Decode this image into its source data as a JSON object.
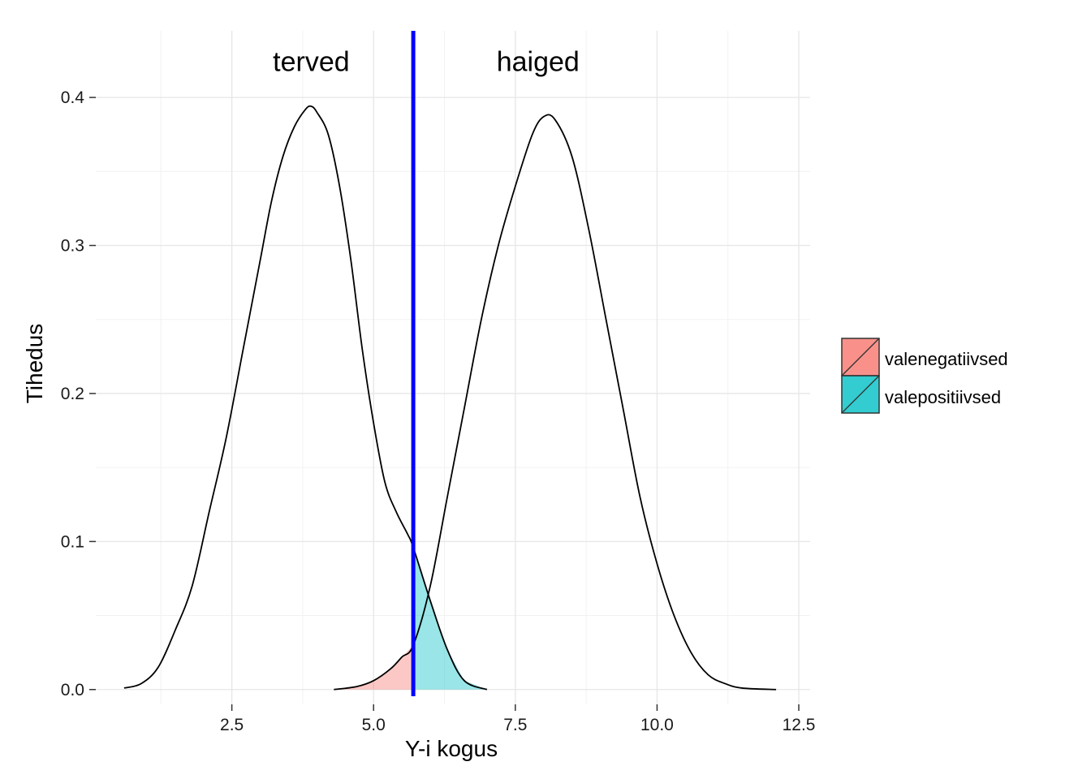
{
  "chart_data": {
    "type": "area",
    "xlabel": "Y-i kogus",
    "ylabel": "Tihedus",
    "xlim": [
      0.1,
      12.7
    ],
    "ylim": [
      -0.01,
      0.445
    ],
    "x_ticks": [
      2.5,
      5.0,
      7.5,
      10.0,
      12.5
    ],
    "x_tick_labels": [
      "2.5",
      "5.0",
      "7.5",
      "10.0",
      "12.5"
    ],
    "y_ticks": [
      0.0,
      0.1,
      0.2,
      0.3,
      0.4
    ],
    "y_tick_labels": [
      "0.0",
      "0.1",
      "0.2",
      "0.3",
      "0.4"
    ],
    "grid": true,
    "threshold": {
      "x": 5.7,
      "color": "#0000ff"
    },
    "annotations": [
      {
        "text": "terved",
        "x": 3.9,
        "y": 0.418
      },
      {
        "text": "haiged",
        "x": 7.9,
        "y": 0.418
      }
    ],
    "series": [
      {
        "x": [
          0.6,
          0.9,
          1.2,
          1.5,
          1.8,
          2.1,
          2.4,
          2.7,
          3.0,
          3.2,
          3.4,
          3.6,
          3.8,
          3.9,
          4.0,
          4.2,
          4.4,
          4.6,
          4.8,
          5.0,
          5.2,
          5.4,
          5.6,
          5.7,
          6.0,
          6.3,
          6.6,
          7.0
        ],
        "y": [
          0.001,
          0.004,
          0.015,
          0.04,
          0.07,
          0.12,
          0.17,
          0.23,
          0.29,
          0.33,
          0.36,
          0.38,
          0.392,
          0.394,
          0.39,
          0.375,
          0.34,
          0.29,
          0.23,
          0.18,
          0.14,
          0.12,
          0.105,
          0.096,
          0.06,
          0.027,
          0.006,
          0.0
        ]
      },
      {
        "x": [
          4.3,
          4.7,
          5.0,
          5.3,
          5.5,
          5.7,
          6.0,
          6.3,
          6.6,
          6.9,
          7.2,
          7.5,
          7.8,
          8.0,
          8.2,
          8.5,
          8.8,
          9.1,
          9.4,
          9.7,
          10.0,
          10.3,
          10.6,
          10.9,
          11.2,
          11.5,
          12.1
        ],
        "y": [
          0.0,
          0.002,
          0.006,
          0.014,
          0.022,
          0.03,
          0.07,
          0.13,
          0.19,
          0.25,
          0.3,
          0.34,
          0.375,
          0.387,
          0.385,
          0.36,
          0.31,
          0.25,
          0.19,
          0.13,
          0.085,
          0.05,
          0.025,
          0.01,
          0.004,
          0.001,
          0.0
        ]
      }
    ],
    "shaded_regions": [
      {
        "name": "valenegatiivsed",
        "fill": "#f8766d",
        "side": "left-of-threshold",
        "under_series": 1,
        "from_x": 4.3
      },
      {
        "name": "valepositiivsed",
        "fill": "#00bfc4",
        "side": "right-of-threshold",
        "under_series": 0,
        "to_x": 7.0
      }
    ],
    "legend": {
      "position": "right",
      "entries": [
        {
          "label": "valenegatiivsed",
          "color": "#f8766d"
        },
        {
          "label": "valepositiivsed",
          "color": "#00bfc4"
        }
      ]
    }
  }
}
